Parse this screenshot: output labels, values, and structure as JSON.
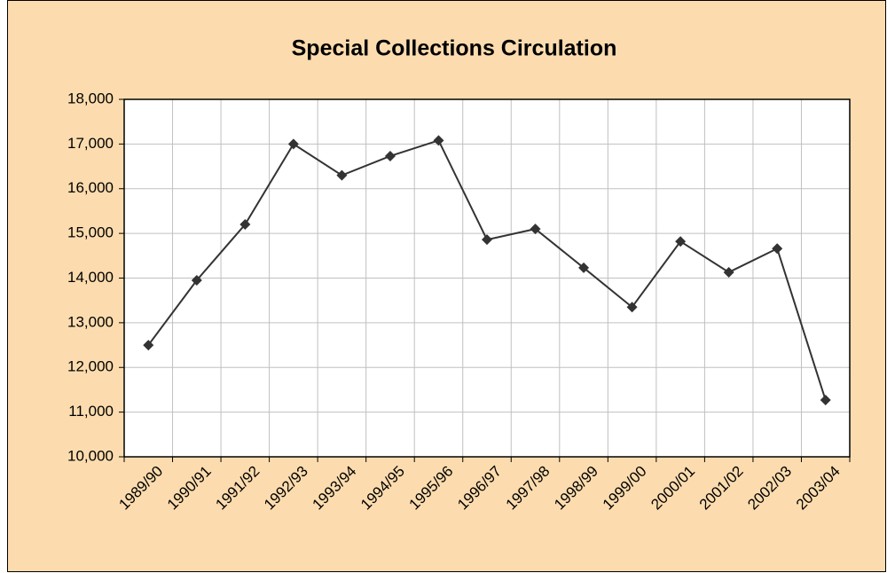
{
  "chart_data": {
    "type": "line",
    "title": "Special Collections Circulation",
    "categories": [
      "1989/90",
      "1990/91",
      "1991/92",
      "1992/93",
      "1993/94",
      "1994/95",
      "1995/96",
      "1996/97",
      "1997/98",
      "1998/99",
      "1999/00",
      "2000/01",
      "2001/02",
      "2002/03",
      "2003/04"
    ],
    "series": [
      {
        "color": "#333333",
        "values": [
          12500,
          13950,
          15200,
          17000,
          16300,
          16730,
          17080,
          14860,
          15100,
          14230,
          13350,
          14820,
          14130,
          14660,
          11270
        ]
      }
    ],
    "ylim": [
      10000,
      18000
    ],
    "yticks": [
      {
        "value": 10000,
        "label": "10,000"
      },
      {
        "value": 11000,
        "label": "11,000"
      },
      {
        "value": 12000,
        "label": "12,000"
      },
      {
        "value": 13000,
        "label": "13,000"
      },
      {
        "value": 14000,
        "label": "14,000"
      },
      {
        "value": 15000,
        "label": "15,000"
      },
      {
        "value": 16000,
        "label": "16,000"
      },
      {
        "value": 17000,
        "label": "17,000"
      },
      {
        "value": 18000,
        "label": "18,000"
      }
    ],
    "grid": true
  }
}
